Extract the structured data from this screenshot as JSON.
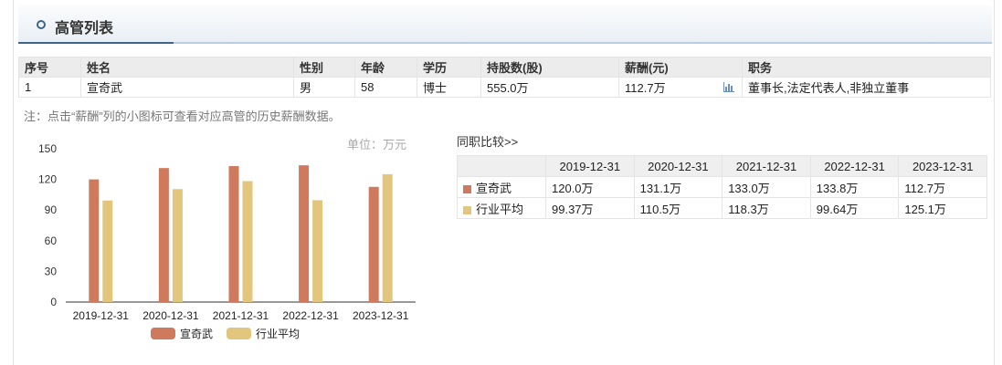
{
  "header": {
    "title": "高管列表"
  },
  "exec_table": {
    "columns": [
      "序号",
      "姓名",
      "性别",
      "年龄",
      "学历",
      "持股数(股)",
      "薪酬(元)",
      "职务"
    ],
    "rows": [
      {
        "no": "1",
        "name": "宣奇武",
        "gender": "男",
        "age": "58",
        "edu": "博士",
        "shares": "555.0万",
        "pay": "112.7万",
        "title": "董事长,法定代表人,非独立董事"
      }
    ]
  },
  "note": "注：点击“薪酬”列的小图标可查看对应高管的历史薪酬数据。",
  "unit": "单位：万元",
  "compare_link": "同职比较>>",
  "compare_table": {
    "headers": [
      "2019-12-31",
      "2020-12-31",
      "2021-12-31",
      "2022-12-31",
      "2023-12-31"
    ],
    "rows": [
      {
        "name": "宣奇武",
        "color": "#cf7a5c",
        "values": [
          "120.0万",
          "131.1万",
          "133.0万",
          "133.8万",
          "112.7万"
        ]
      },
      {
        "name": "行业平均",
        "color": "#e2c67e",
        "values": [
          "99.37万",
          "110.5万",
          "118.3万",
          "99.64万",
          "125.1万"
        ]
      }
    ]
  },
  "chart_data": {
    "type": "bar",
    "categories": [
      "2019-12-31",
      "2020-12-31",
      "2021-12-31",
      "2022-12-31",
      "2023-12-31"
    ],
    "series": [
      {
        "name": "宣奇武",
        "color": "#cf7a5c",
        "values": [
          120.0,
          131.1,
          133.0,
          133.8,
          112.7
        ]
      },
      {
        "name": "行业平均",
        "color": "#e2c67e",
        "values": [
          99.37,
          110.5,
          118.3,
          99.64,
          125.1
        ]
      }
    ],
    "yticks": [
      0,
      30,
      60,
      90,
      120,
      150
    ],
    "ylim": [
      0,
      150
    ],
    "legend": "bottom"
  }
}
